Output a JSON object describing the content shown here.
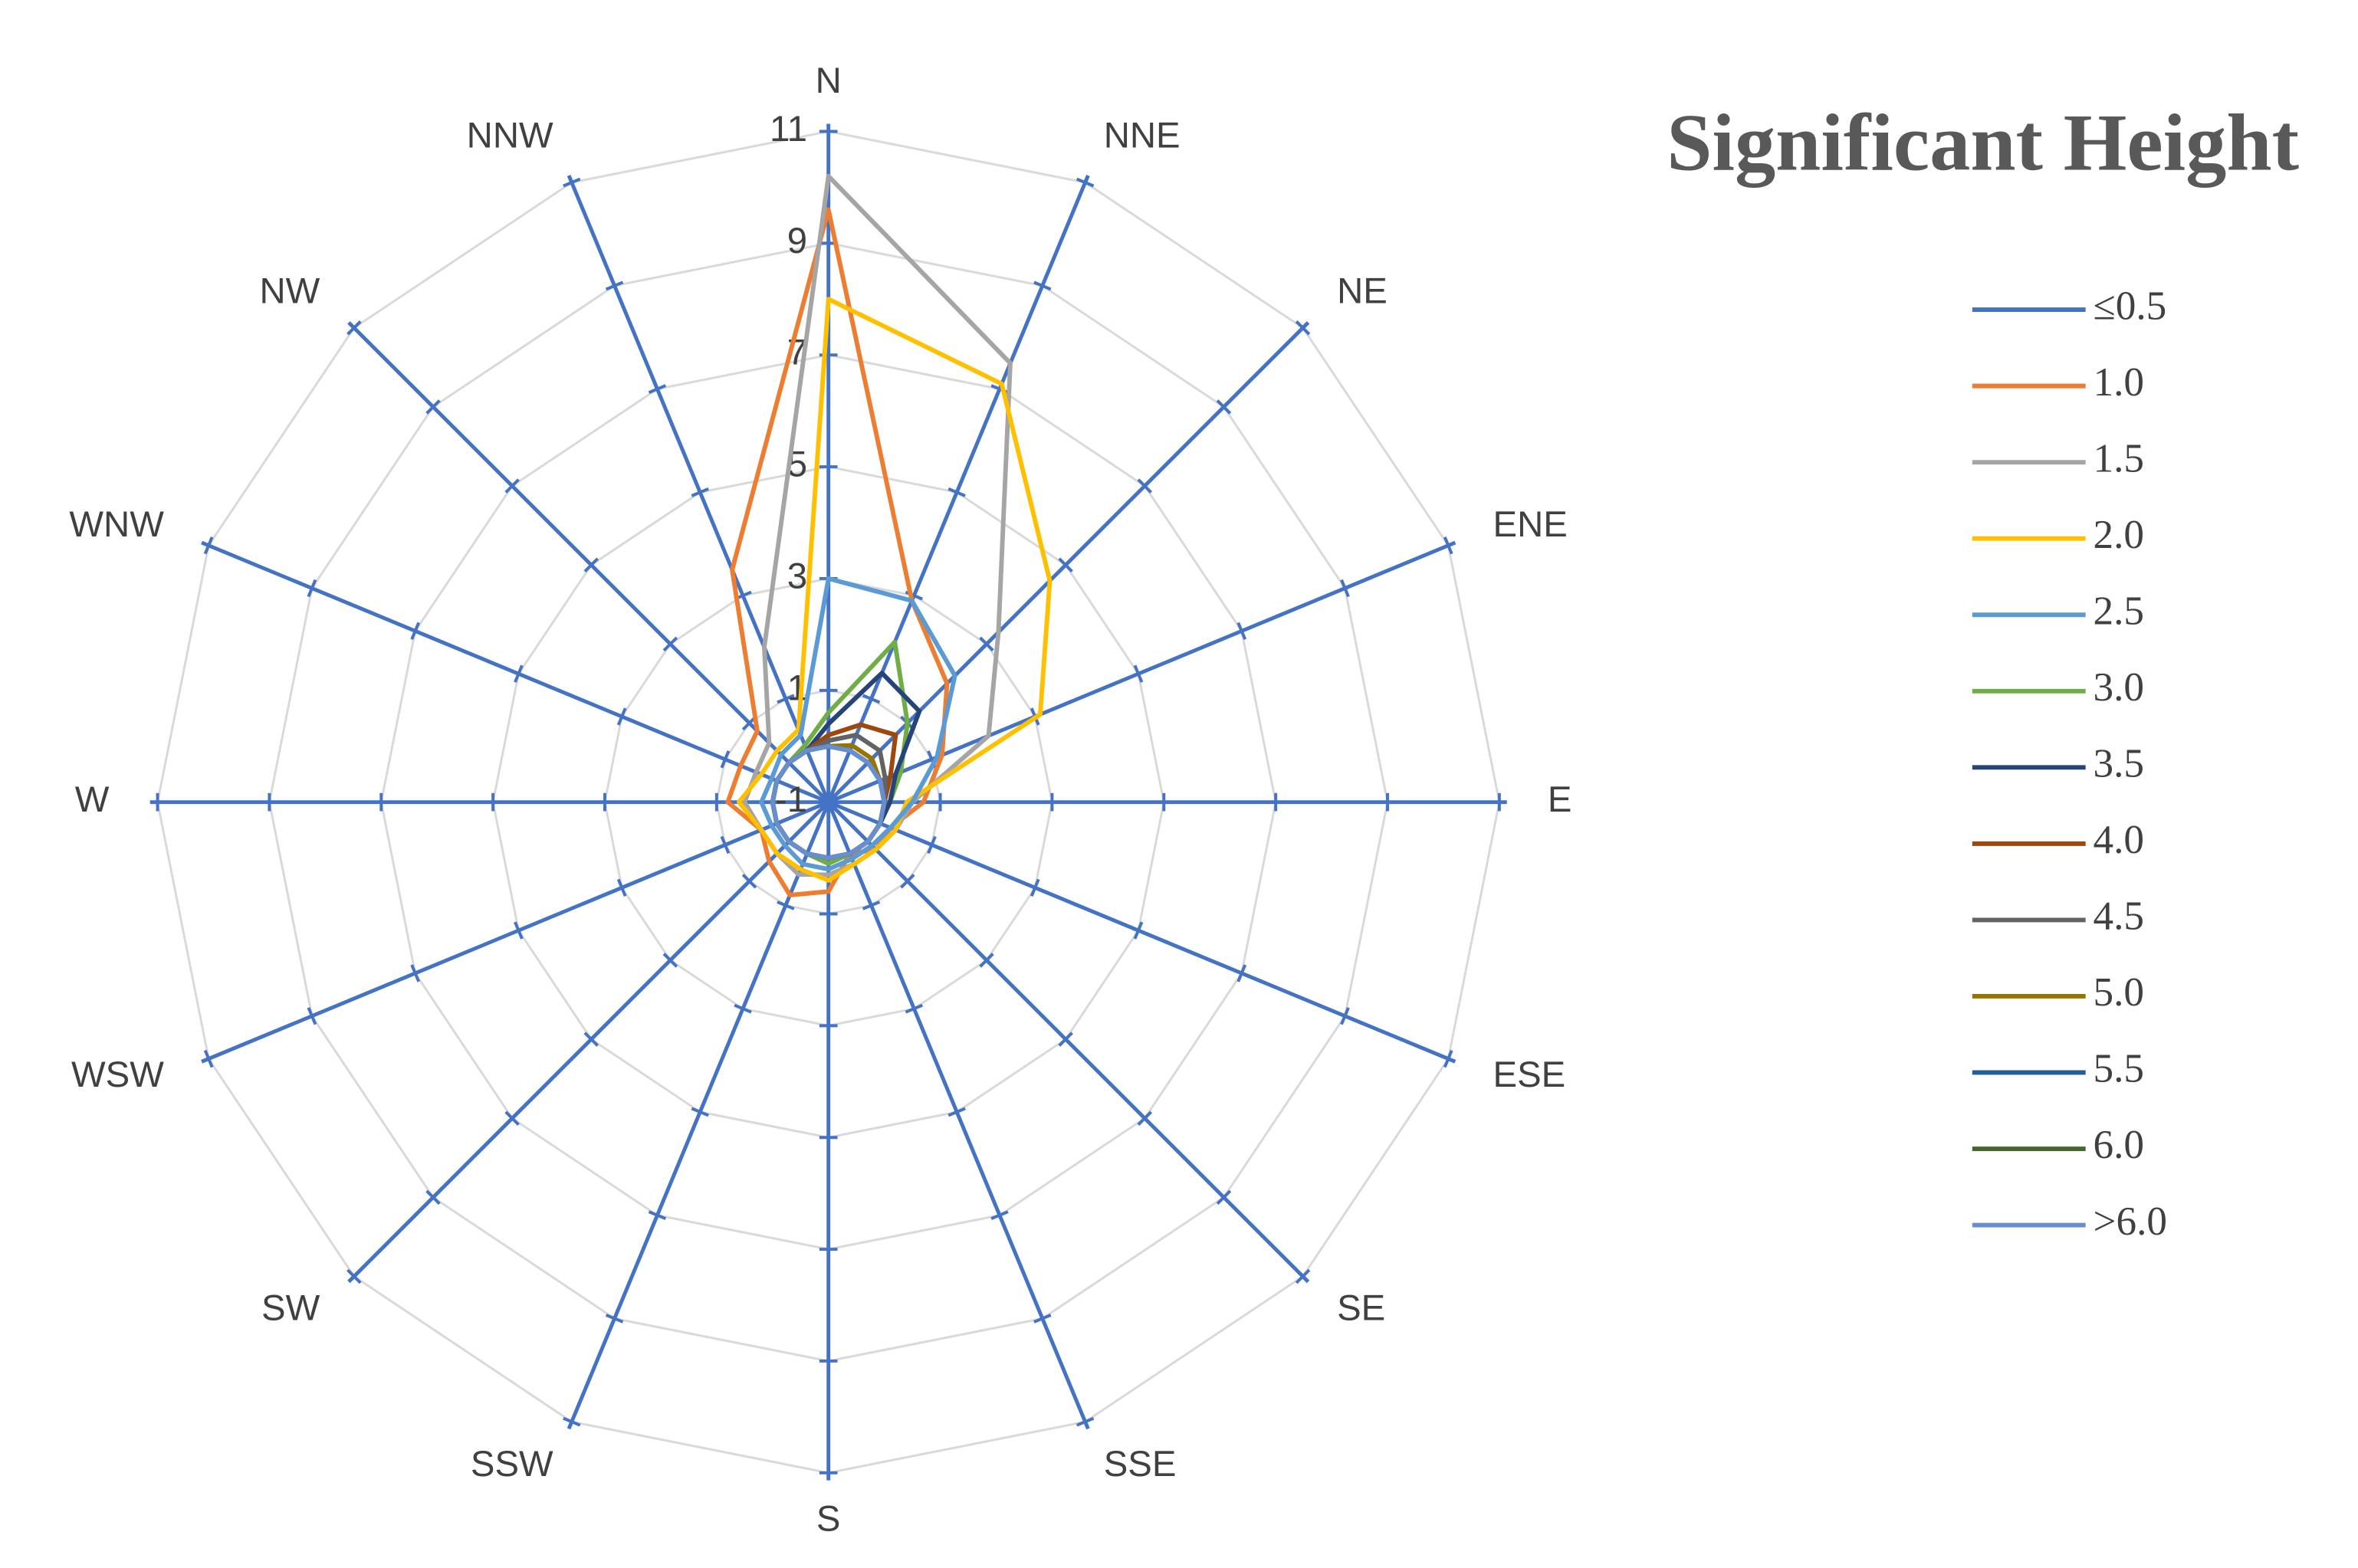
{
  "chart_data": {
    "type": "radar",
    "title": "Significant Height",
    "categories": [
      "N",
      "NNE",
      "NE",
      "ENE",
      "E",
      "ESE",
      "SE",
      "SSE",
      "S",
      "SSW",
      "SW",
      "WSW",
      "W",
      "WNW",
      "NW",
      "NNW"
    ],
    "ylim": [
      -1,
      11
    ],
    "yticks": [
      -1,
      1,
      3,
      5,
      7,
      9,
      11
    ],
    "grid": true,
    "series": [
      {
        "name": "≤0.5",
        "color": "#4472c4",
        "values": [
          0,
          0,
          0,
          0,
          0,
          0,
          0,
          0,
          0,
          0,
          0,
          0,
          0,
          0,
          0,
          0
        ]
      },
      {
        "name": "1.0",
        "color": "#ed7d31",
        "values": [
          9.6,
          2.9,
          2.0,
          1.2,
          0.7,
          0.2,
          0.2,
          0.0,
          0.6,
          0.8,
          0.5,
          0.3,
          0.8,
          0.7,
          0.8,
          3.5
        ]
      },
      {
        "name": "1.5",
        "color": "#a5a5a5",
        "values": [
          10.2,
          7.5,
          3.3,
          2.1,
          0.5,
          0.3,
          0.2,
          0.2,
          0.3,
          0.4,
          0.3,
          0.3,
          0.5,
          0.4,
          0.5,
          2.0
        ]
      },
      {
        "name": "2.0",
        "color": "#ffc000",
        "values": [
          8.0,
          7.1,
          4.6,
          3.1,
          0.4,
          0.3,
          0.2,
          0.2,
          0.4,
          0.3,
          0.3,
          0.3,
          0.6,
          0.3,
          0.3,
          0.4
        ]
      },
      {
        "name": "2.5",
        "color": "#5b9bd5",
        "values": [
          3.0,
          2.9,
          2.2,
          1.1,
          0.5,
          0.2,
          0.1,
          0.1,
          0.2,
          0.2,
          0.1,
          0.1,
          0.2,
          0.1,
          0.2,
          0.3
        ]
      },
      {
        "name": "3.0",
        "color": "#70ad47",
        "values": [
          0.6,
          2.1,
          1.0,
          0.4,
          0.1,
          0.0,
          0.0,
          0.0,
          0.1,
          0.0,
          0.0,
          0.0,
          0.0,
          0.0,
          0.0,
          0.1
        ]
      },
      {
        "name": "3.5",
        "color": "#264478",
        "values": [
          0.4,
          1.5,
          1.3,
          0.3,
          0.1,
          0.0,
          0.0,
          0.0,
          0.0,
          0.0,
          0.0,
          0.0,
          0.0,
          0.0,
          0.0,
          0.0
        ]
      },
      {
        "name": "4.0",
        "color": "#9e480e",
        "values": [
          0.2,
          0.5,
          0.7,
          0.2,
          0.0,
          0.0,
          0.0,
          0.0,
          0.0,
          0.0,
          0.0,
          0.0,
          0.0,
          0.0,
          0.0,
          0.0
        ]
      },
      {
        "name": "4.5",
        "color": "#636363",
        "values": [
          0.1,
          0.3,
          0.3,
          0.1,
          0.0,
          0.0,
          0.0,
          0.0,
          0.0,
          0.0,
          0.0,
          0.0,
          0.0,
          0.0,
          0.0,
          0.0
        ]
      },
      {
        "name": "5.0",
        "color": "#997300",
        "values": [
          0,
          0.1,
          0.1,
          0,
          0,
          0,
          0,
          0,
          0,
          0,
          0,
          0,
          0,
          0,
          0,
          0
        ]
      },
      {
        "name": "5.5",
        "color": "#255e91",
        "values": [
          0,
          0,
          0,
          0,
          0,
          0,
          0,
          0,
          0,
          0,
          0,
          0,
          0,
          0,
          0,
          0
        ]
      },
      {
        "name": "6.0",
        "color": "#43682b",
        "values": [
          0,
          0,
          0,
          0,
          0,
          0,
          0,
          0,
          0,
          0,
          0,
          0,
          0,
          0,
          0,
          0
        ]
      },
      {
        "name": ">6.0",
        "color": "#698ed0",
        "values": [
          0,
          0,
          0,
          0,
          0,
          0,
          0,
          0,
          0,
          0,
          0,
          0,
          0,
          0,
          0,
          0
        ]
      }
    ]
  }
}
